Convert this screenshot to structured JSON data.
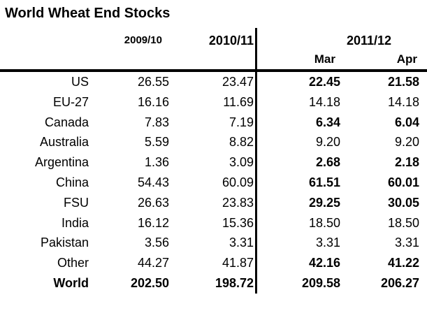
{
  "title": "World Wheat End Stocks",
  "header": {
    "col_2009_10": "2009/10",
    "col_2010_11": "2010/11",
    "col_2011_12": "2011/12",
    "sub_mar": "Mar",
    "sub_apr": "Apr"
  },
  "rows": [
    {
      "label": "US",
      "v2009": "26.55",
      "v2010": "23.47",
      "mar": "22.45",
      "apr": "21.58"
    },
    {
      "label": "EU-27",
      "v2009": "16.16",
      "v2010": "11.69",
      "mar": "14.18",
      "apr": "14.18"
    },
    {
      "label": "Canada",
      "v2009": "7.83",
      "v2010": "7.19",
      "mar": "6.34",
      "apr": "6.04"
    },
    {
      "label": "Australia",
      "v2009": "5.59",
      "v2010": "8.82",
      "mar": "9.20",
      "apr": "9.20"
    },
    {
      "label": "Argentina",
      "v2009": "1.36",
      "v2010": "3.09",
      "mar": "2.68",
      "apr": "2.18"
    },
    {
      "label": "China",
      "v2009": "54.43",
      "v2010": "60.09",
      "mar": "61.51",
      "apr": "60.01"
    },
    {
      "label": "FSU",
      "v2009": "26.63",
      "v2010": "23.83",
      "mar": "29.25",
      "apr": "30.05"
    },
    {
      "label": "India",
      "v2009": "16.12",
      "v2010": "15.36",
      "mar": "18.50",
      "apr": "18.50"
    },
    {
      "label": "Pakistan",
      "v2009": "3.56",
      "v2010": "3.31",
      "mar": "3.31",
      "apr": "3.31"
    },
    {
      "label": "Other",
      "v2009": "44.27",
      "v2010": "41.87",
      "mar": "42.16",
      "apr": "41.22"
    },
    {
      "label": "World",
      "v2009": "202.50",
      "v2010": "198.72",
      "mar": "209.58",
      "apr": "206.27"
    }
  ],
  "colors": {
    "text": "#000000",
    "background": "#ffffff",
    "rules": "#000000"
  },
  "chart_data": {
    "type": "table",
    "title": "World Wheat End Stocks",
    "columns": [
      "",
      "2009/10",
      "2010/11",
      "2011/12 Mar",
      "2011/12 Apr"
    ],
    "rows": [
      [
        "US",
        26.55,
        23.47,
        22.45,
        21.58
      ],
      [
        "EU-27",
        16.16,
        11.69,
        14.18,
        14.18
      ],
      [
        "Canada",
        7.83,
        7.19,
        6.34,
        6.04
      ],
      [
        "Australia",
        5.59,
        8.82,
        9.2,
        9.2
      ],
      [
        "Argentina",
        1.36,
        3.09,
        2.68,
        2.18
      ],
      [
        "China",
        54.43,
        60.09,
        61.51,
        60.01
      ],
      [
        "FSU",
        26.63,
        23.83,
        29.25,
        30.05
      ],
      [
        "India",
        16.12,
        15.36,
        18.5,
        18.5
      ],
      [
        "Pakistan",
        3.56,
        3.31,
        3.31,
        3.31
      ],
      [
        "Other",
        44.27,
        41.87,
        42.16,
        41.22
      ],
      [
        "World",
        202.5,
        198.72,
        209.58,
        206.27
      ]
    ],
    "bold_2011_12_rows": [
      "US",
      "Canada",
      "Argentina",
      "China",
      "FSU",
      "Other",
      "World"
    ],
    "bold_entire_row": [
      "World"
    ]
  }
}
